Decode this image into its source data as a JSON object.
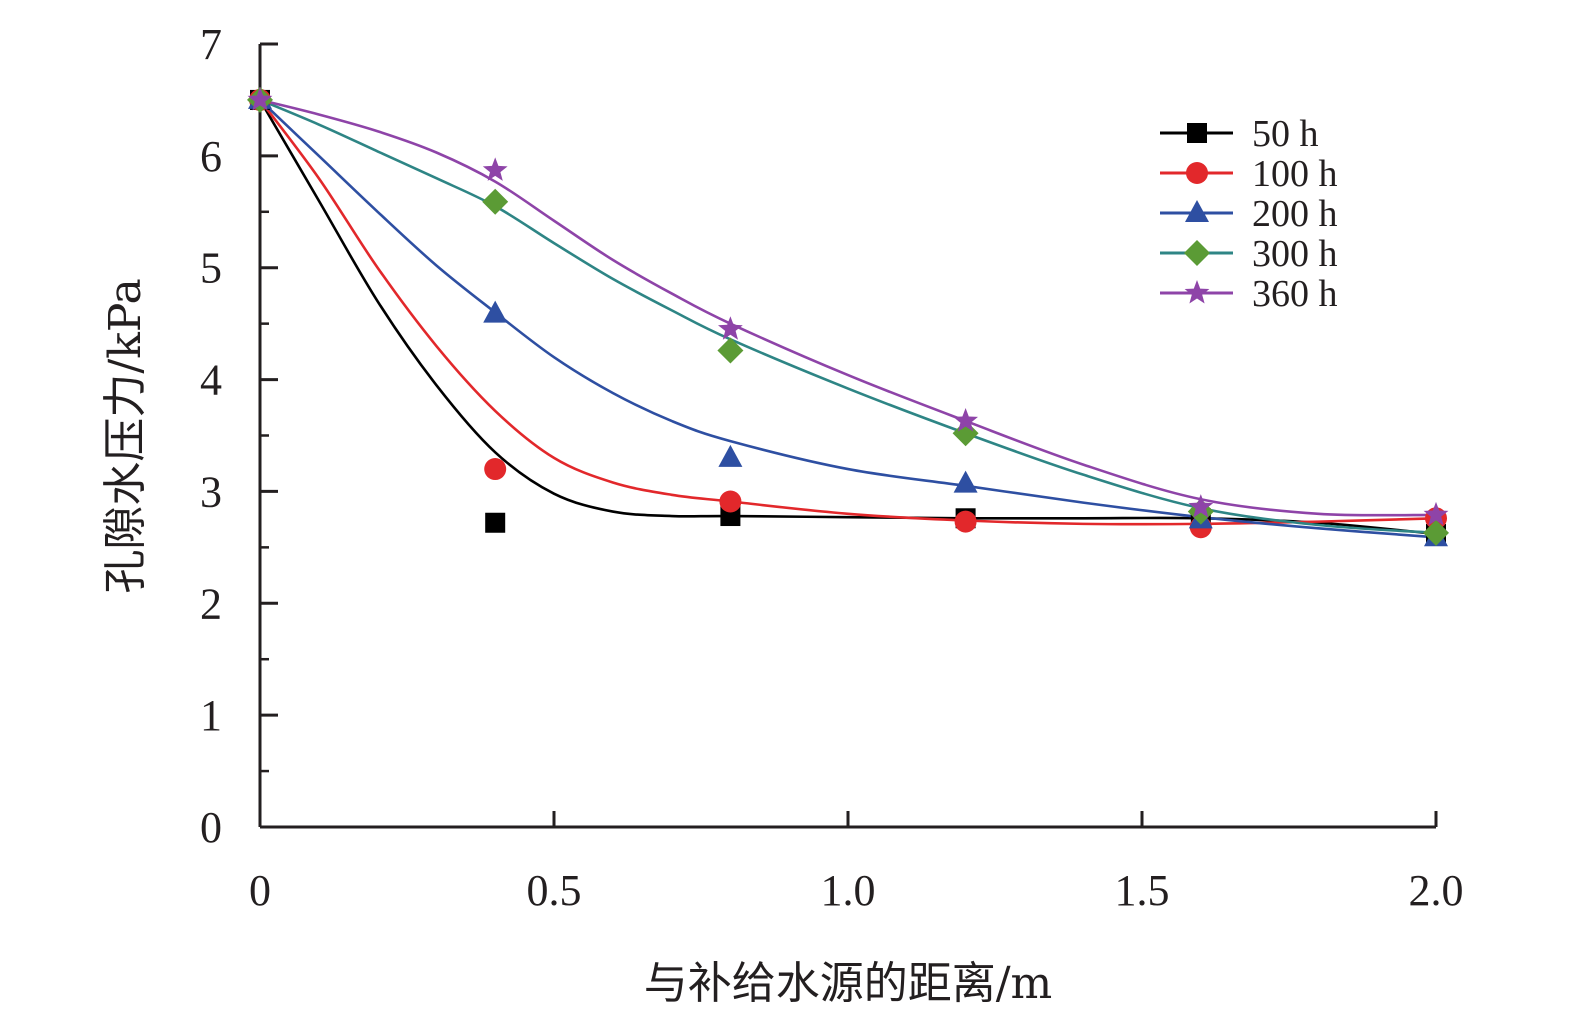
{
  "chart_data": {
    "type": "scatter",
    "title": "",
    "xlabel": "与补给水源的距离/m",
    "ylabel": "孔隙水压力/kPa",
    "xlim": [
      0,
      2.0
    ],
    "ylim": [
      0,
      7
    ],
    "xticks": [
      "0",
      "0.5",
      "1.0",
      "1.5",
      "2.0"
    ],
    "xtick_values": [
      0,
      0.5,
      1.0,
      1.5,
      2.0
    ],
    "yticks": [
      "0",
      "1",
      "2",
      "3",
      "4",
      "5",
      "6",
      "7"
    ],
    "ytick_values": [
      0,
      1,
      2,
      3,
      4,
      5,
      6,
      7
    ],
    "grid": false,
    "legend_position": "top-right",
    "x": [
      0,
      0.4,
      0.8,
      1.2,
      1.6,
      2.0
    ],
    "series": [
      {
        "name": "50 h",
        "color": "#000000",
        "marker": "square",
        "values": [
          6.5,
          2.72,
          2.78,
          2.76,
          2.76,
          2.62
        ],
        "fit_x": [
          0,
          0.1,
          0.2,
          0.3,
          0.4,
          0.5,
          0.6,
          0.7,
          0.8,
          1.0,
          1.2,
          1.4,
          1.6,
          1.8,
          2.0
        ],
        "fit_y": [
          6.5,
          5.6,
          4.7,
          3.95,
          3.35,
          2.98,
          2.82,
          2.78,
          2.78,
          2.77,
          2.76,
          2.76,
          2.76,
          2.72,
          2.62
        ]
      },
      {
        "name": "100 h",
        "color": "#e2282b",
        "marker": "circle",
        "values": [
          6.5,
          3.2,
          2.91,
          2.73,
          2.68,
          2.76
        ],
        "fit_x": [
          0,
          0.1,
          0.2,
          0.3,
          0.4,
          0.5,
          0.6,
          0.7,
          0.8,
          1.0,
          1.2,
          1.4,
          1.6,
          1.8,
          2.0
        ],
        "fit_y": [
          6.5,
          5.8,
          5.0,
          4.3,
          3.72,
          3.3,
          3.08,
          2.97,
          2.91,
          2.8,
          2.74,
          2.71,
          2.71,
          2.73,
          2.76
        ]
      },
      {
        "name": "200 h",
        "color": "#2e4fa2",
        "marker": "triangle",
        "values": [
          6.5,
          4.59,
          3.3,
          3.07,
          2.75,
          2.59
        ],
        "fit_x": [
          0,
          0.1,
          0.2,
          0.3,
          0.4,
          0.5,
          0.6,
          0.7,
          0.8,
          1.0,
          1.2,
          1.4,
          1.6,
          1.8,
          2.0
        ],
        "fit_y": [
          6.5,
          6.0,
          5.5,
          5.02,
          4.6,
          4.2,
          3.88,
          3.63,
          3.45,
          3.2,
          3.05,
          2.9,
          2.77,
          2.67,
          2.59
        ]
      },
      {
        "name": "300 h",
        "color": "#5b9b35",
        "line_color": "#2e8585",
        "marker": "diamond",
        "values": [
          6.5,
          5.59,
          4.26,
          3.52,
          2.82,
          2.63
        ],
        "fit_x": [
          0,
          0.1,
          0.2,
          0.3,
          0.4,
          0.5,
          0.6,
          0.7,
          0.8,
          1.0,
          1.2,
          1.4,
          1.6,
          1.8,
          2.0
        ],
        "fit_y": [
          6.5,
          6.28,
          6.04,
          5.8,
          5.55,
          5.22,
          4.9,
          4.62,
          4.36,
          3.92,
          3.52,
          3.15,
          2.85,
          2.7,
          2.63
        ]
      },
      {
        "name": "360 h",
        "color": "#8e44a8",
        "marker": "star",
        "values": [
          6.5,
          5.87,
          4.45,
          3.63,
          2.86,
          2.79
        ],
        "fit_x": [
          0,
          0.1,
          0.2,
          0.3,
          0.4,
          0.5,
          0.6,
          0.7,
          0.8,
          1.0,
          1.2,
          1.4,
          1.6,
          1.8,
          2.0
        ],
        "fit_y": [
          6.5,
          6.37,
          6.22,
          6.03,
          5.77,
          5.42,
          5.07,
          4.77,
          4.5,
          4.04,
          3.63,
          3.24,
          2.93,
          2.8,
          2.79
        ]
      }
    ]
  }
}
